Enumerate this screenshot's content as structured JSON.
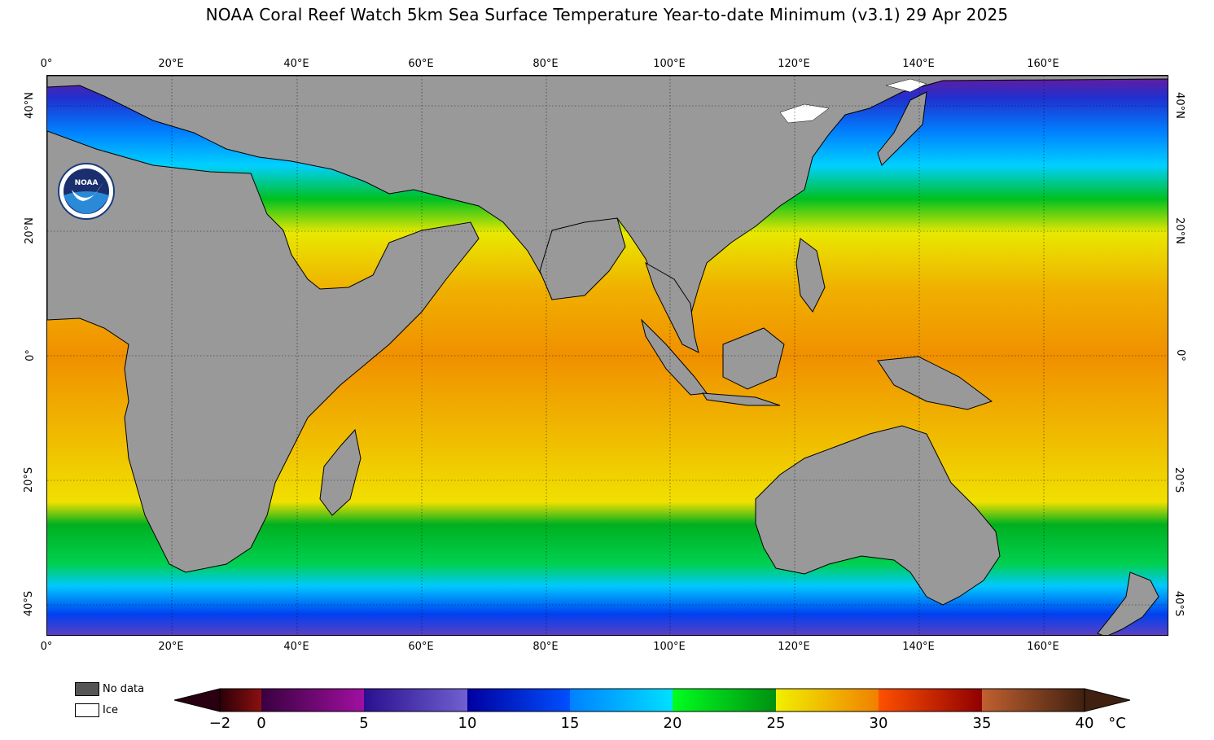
{
  "title": "NOAA Coral Reef Watch 5km Sea Surface Temperature Year-to-date Minimum  (v3.1)   29 Apr 2025",
  "longitude_ticks": [
    "0°",
    "20°E",
    "40°E",
    "60°E",
    "80°E",
    "100°E",
    "120°E",
    "140°E",
    "160°E"
  ],
  "latitude_ticks": [
    "40°N",
    "20°N",
    "0°",
    "20°S",
    "40°S"
  ],
  "logo_text": "NOAA",
  "legend": {
    "no_data_label": "No data",
    "no_data_color": "#555555",
    "ice_label": "Ice",
    "ice_color": "#ffffff",
    "land_color": "#999999"
  },
  "colorbar": {
    "labels": [
      "−2",
      "0",
      "5",
      "10",
      "15",
      "20",
      "25",
      "30",
      "35",
      "40"
    ],
    "unit": "°C",
    "bands": [
      {
        "range": [
          -2,
          0
        ],
        "from": "#2a0008",
        "to": "#8c1010"
      },
      {
        "range": [
          0,
          5
        ],
        "from": "#3a0040",
        "to": "#a010a0"
      },
      {
        "range": [
          5,
          10
        ],
        "from": "#2a1090",
        "to": "#7060d0"
      },
      {
        "range": [
          10,
          15
        ],
        "from": "#0000a0",
        "to": "#0050ff"
      },
      {
        "range": [
          15,
          20
        ],
        "from": "#0080ff",
        "to": "#00e0ff"
      },
      {
        "range": [
          20,
          25
        ],
        "from": "#00ff20",
        "to": "#009010"
      },
      {
        "range": [
          25,
          30
        ],
        "from": "#f0f000",
        "to": "#f08000"
      },
      {
        "range": [
          30,
          35
        ],
        "from": "#ff5000",
        "to": "#900000"
      },
      {
        "range": [
          35,
          40
        ],
        "from": "#c06030",
        "to": "#402010"
      }
    ],
    "under_color": "#2a0010",
    "over_color": "#402010"
  }
}
